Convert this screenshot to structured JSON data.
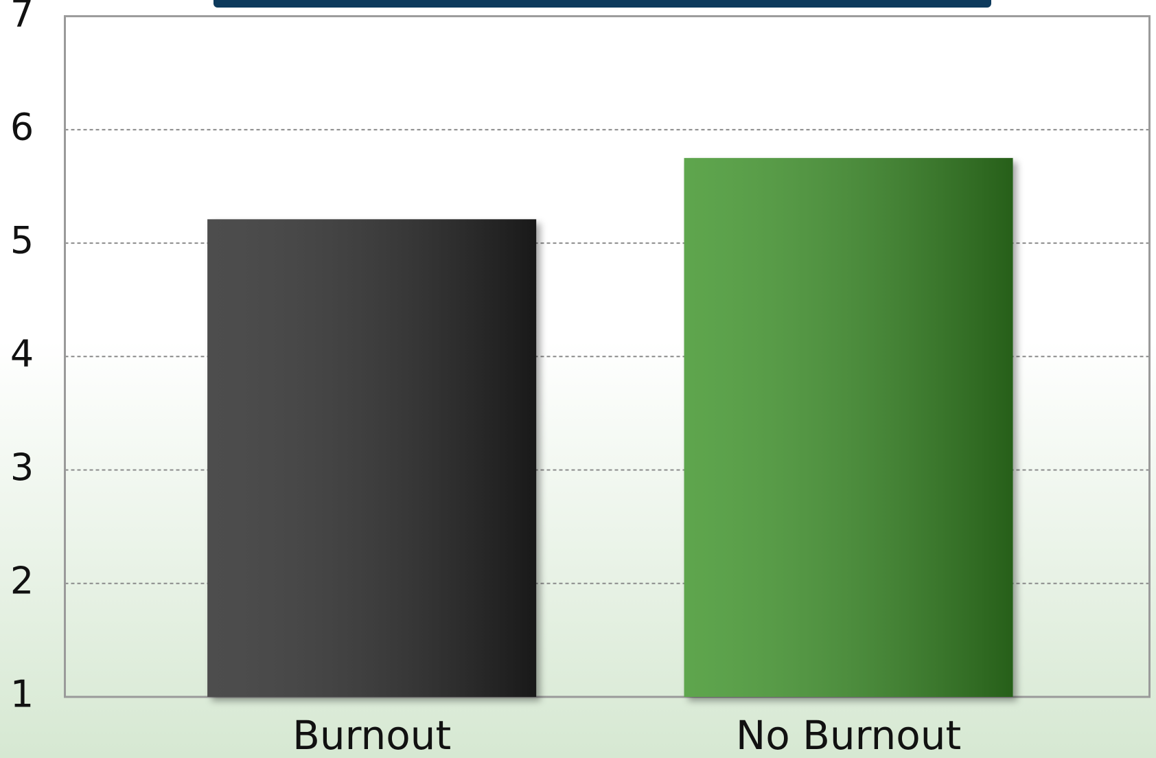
{
  "chart_data": {
    "type": "bar",
    "categories": [
      "Burnout",
      "No Burnout"
    ],
    "values": [
      5.21,
      5.75
    ],
    "colors": [
      "#262626",
      "#3a9227"
    ],
    "ylim": [
      1,
      7
    ],
    "yticks": [
      1,
      2,
      3,
      4,
      5,
      6,
      7
    ],
    "grid": true
  }
}
